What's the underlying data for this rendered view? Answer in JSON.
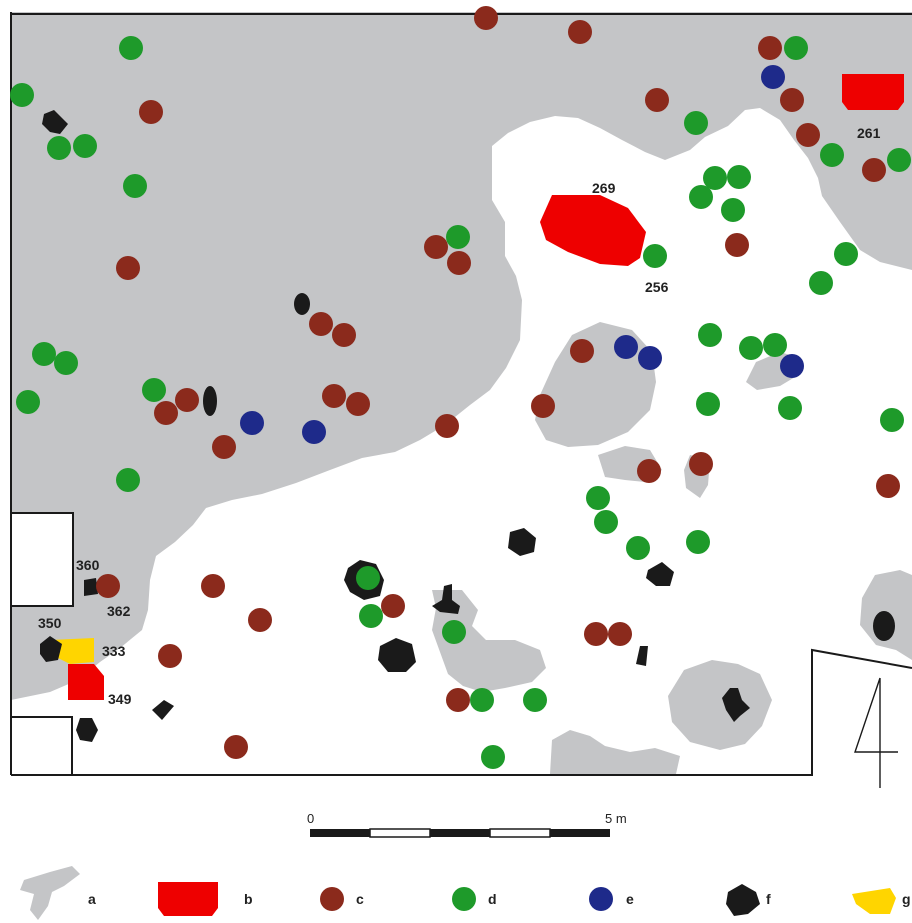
{
  "colors": {
    "area": "#c4c5c7",
    "feature_red": "#ee0000",
    "brown": "#8b2a1c",
    "green": "#1e9a2a",
    "blue": "#1e2a8a",
    "black": "#1a1a1a",
    "yellow": "#ffd500",
    "outline": "#1a1a1a"
  },
  "feature_labels": {
    "f261": "261",
    "f269": "269",
    "f256": "256",
    "f360": "360",
    "f362": "362",
    "f350": "350",
    "f333": "333",
    "f349": "349"
  },
  "scale": {
    "start": "0",
    "end": "5 m"
  },
  "legend": [
    {
      "key": "a",
      "symbol": "grey-area-icon"
    },
    {
      "key": "b",
      "symbol": "red-feature-icon"
    },
    {
      "key": "c",
      "symbol": "brown-dot-icon"
    },
    {
      "key": "d",
      "symbol": "green-dot-icon"
    },
    {
      "key": "e",
      "symbol": "blue-dot-icon"
    },
    {
      "key": "f",
      "symbol": "black-pit-icon"
    },
    {
      "key": "g",
      "symbol": "yellow-feature-icon"
    }
  ]
}
